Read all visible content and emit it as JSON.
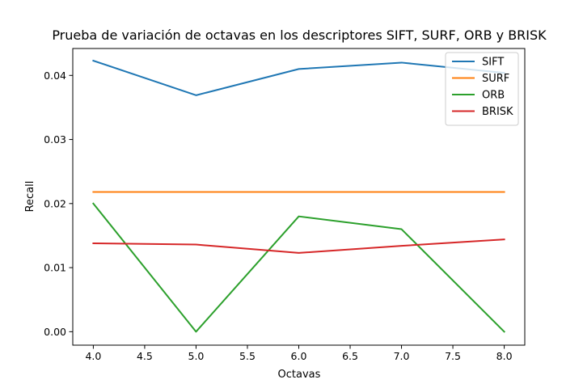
{
  "chart_data": {
    "type": "line",
    "title": "Prueba de variación de octavas en los descriptores SIFT, SURF, ORB y BRISK",
    "xlabel": "Octavas",
    "ylabel": "Recall",
    "xlim": [
      3.8,
      8.2
    ],
    "ylim": [
      -0.0021,
      0.0442
    ],
    "xticks": [
      4.0,
      4.5,
      5.0,
      5.5,
      6.0,
      6.5,
      7.0,
      7.5,
      8.0
    ],
    "xtick_labels": [
      "4.0",
      "4.5",
      "5.0",
      "5.5",
      "6.0",
      "6.5",
      "7.0",
      "7.5",
      "8.0"
    ],
    "yticks": [
      0.0,
      0.01,
      0.02,
      0.03,
      0.04
    ],
    "ytick_labels": [
      "0.00",
      "0.01",
      "0.02",
      "0.03",
      "0.04"
    ],
    "grid": false,
    "legend_position": "top-right",
    "x": [
      4,
      5,
      6,
      7,
      8
    ],
    "series": [
      {
        "name": "SIFT",
        "color": "#1f77b4",
        "values": [
          0.0423,
          0.0369,
          0.041,
          0.042,
          0.0404
        ]
      },
      {
        "name": "SURF",
        "color": "#ff7f0e",
        "values": [
          0.0218,
          0.0218,
          0.0218,
          0.0218,
          0.0218
        ]
      },
      {
        "name": "ORB",
        "color": "#2ca02c",
        "values": [
          0.02,
          0.0,
          0.018,
          0.016,
          0.0
        ]
      },
      {
        "name": "BRISK",
        "color": "#d62728",
        "values": [
          0.0138,
          0.0136,
          0.0123,
          0.0134,
          0.0144
        ]
      }
    ]
  }
}
